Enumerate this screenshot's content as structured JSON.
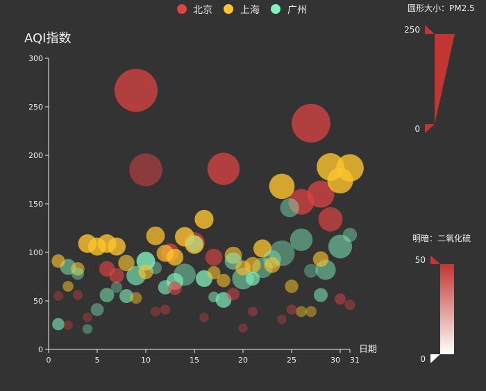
{
  "chart_data": {
    "type": "scatter",
    "ylabel": "AQI指数",
    "xlabel": "日期",
    "xlim": [
      0,
      31
    ],
    "ylim": [
      0,
      300
    ],
    "x_ticks": [
      0,
      5,
      10,
      15,
      20,
      25,
      30,
      31
    ],
    "x_tick_labels": [
      "0",
      "5",
      "10",
      "15",
      "20",
      "25",
      "30",
      "31"
    ],
    "y_ticks": [
      0,
      50,
      100,
      150,
      200,
      250,
      300
    ],
    "legend": {
      "placement": "top-center",
      "items": [
        {
          "name": "北京",
          "color": "#dd4444"
        },
        {
          "name": "上海",
          "color": "#fec42c"
        },
        {
          "name": "广州",
          "color": "#80f1be"
        }
      ]
    },
    "visual_maps": {
      "size": {
        "title": "圆形大小：PM2.5",
        "min": 0,
        "max": 250,
        "min_label": "0",
        "max_label": "250",
        "color": "#c23531"
      },
      "opacity": {
        "title": "明暗：二氧化硫",
        "min": 0,
        "max": 50,
        "min_label": "0",
        "max_label": "50",
        "color": "#c23531"
      }
    },
    "series": [
      {
        "name": "北京",
        "color": "#dd4444",
        "points": [
          [
            6,
            83,
            60,
            32
          ],
          [
            7,
            76,
            55,
            30
          ],
          [
            9,
            267,
            250,
            40
          ],
          [
            10,
            185,
            180,
            20
          ],
          [
            11,
            39,
            20,
            5
          ],
          [
            12,
            41,
            22,
            8
          ],
          [
            12.5,
            100,
            75,
            38
          ],
          [
            13,
            63,
            45,
            30
          ],
          [
            15,
            110,
            95,
            36
          ],
          [
            16,
            33,
            18,
            4
          ],
          [
            17,
            95,
            70,
            32
          ],
          [
            18,
            186,
            175,
            40
          ],
          [
            19,
            57,
            40,
            20
          ],
          [
            20,
            22,
            15,
            3
          ],
          [
            21,
            39,
            20,
            8
          ],
          [
            24,
            31,
            18,
            4
          ],
          [
            25,
            41,
            22,
            10
          ],
          [
            26,
            152,
            130,
            38
          ],
          [
            27,
            233,
            220,
            40
          ],
          [
            28,
            160,
            140,
            40
          ],
          [
            29,
            134,
            120,
            36
          ],
          [
            30,
            52,
            30,
            18
          ],
          [
            31,
            46,
            25,
            8
          ],
          [
            1,
            55,
            20,
            4
          ],
          [
            2,
            25,
            18,
            4
          ],
          [
            3,
            56,
            22,
            6
          ],
          [
            4,
            33,
            18,
            3
          ]
        ]
      },
      {
        "name": "上海",
        "color": "#fec42c",
        "points": [
          [
            1,
            91,
            45,
            30
          ],
          [
            2,
            65,
            27,
            20
          ],
          [
            3,
            83,
            45,
            25
          ],
          [
            4,
            109,
            81,
            45
          ],
          [
            5,
            106,
            77,
            44
          ],
          [
            6,
            109,
            81,
            45
          ],
          [
            7,
            106,
            77,
            44
          ],
          [
            8,
            89,
            65,
            30
          ],
          [
            9,
            53,
            33,
            15
          ],
          [
            10,
            80,
            55,
            30
          ],
          [
            11,
            117,
            81,
            40
          ],
          [
            12,
            99,
            71,
            35
          ],
          [
            13,
            95,
            69,
            40
          ],
          [
            14,
            116,
            87,
            45
          ],
          [
            15,
            108,
            80,
            40
          ],
          [
            16,
            134,
            83,
            45
          ],
          [
            17,
            79,
            43,
            25
          ],
          [
            18,
            71,
            46,
            25
          ],
          [
            19,
            97,
            71,
            30
          ],
          [
            20,
            84,
            57,
            28
          ],
          [
            21,
            87,
            63,
            30
          ],
          [
            22,
            104,
            77,
            42
          ],
          [
            23,
            87,
            62,
            30
          ],
          [
            24,
            168,
            128,
            45
          ],
          [
            25,
            65,
            45,
            20
          ],
          [
            26,
            39,
            28,
            13
          ],
          [
            27,
            39,
            28,
            12
          ],
          [
            28,
            93,
            60,
            30
          ],
          [
            29,
            188,
            143,
            45
          ],
          [
            30,
            174,
            131,
            45
          ],
          [
            31,
            187,
            143,
            45
          ]
        ]
      },
      {
        "name": "广州",
        "color": "#80f1be",
        "points": [
          [
            1,
            26,
            37,
            27
          ],
          [
            2,
            85,
            62,
            20
          ],
          [
            3,
            78,
            38,
            10
          ],
          [
            4,
            21,
            21,
            5
          ],
          [
            5,
            41,
            42,
            10
          ],
          [
            6,
            56,
            52,
            20
          ],
          [
            7,
            64,
            30,
            4
          ],
          [
            8,
            55,
            48,
            28
          ],
          [
            9,
            76,
            85,
            30
          ],
          [
            10,
            91,
            81,
            45
          ],
          [
            11,
            84,
            39,
            8
          ],
          [
            12,
            64,
            51,
            30
          ],
          [
            13,
            70,
            69,
            35
          ],
          [
            14,
            77,
            105,
            15
          ],
          [
            15,
            109,
            68,
            10
          ],
          [
            16,
            73,
            68,
            40
          ],
          [
            17,
            54,
            27,
            20
          ],
          [
            18,
            51,
            61,
            35
          ],
          [
            19,
            91,
            71,
            22
          ],
          [
            20,
            73,
            102,
            20
          ],
          [
            21,
            73,
            50,
            35
          ],
          [
            22,
            84,
            94,
            14
          ],
          [
            23,
            93,
            77,
            10
          ],
          [
            24,
            99,
            130,
            10
          ],
          [
            24.8,
            146,
            84,
            12
          ],
          [
            26,
            113,
            108,
            15
          ],
          [
            27,
            81,
            48,
            5
          ],
          [
            28,
            56,
            48,
            22
          ],
          [
            28.5,
            82,
            92,
            18
          ],
          [
            30,
            106,
            116,
            20
          ],
          [
            31,
            118,
            50,
            10
          ]
        ]
      }
    ]
  }
}
